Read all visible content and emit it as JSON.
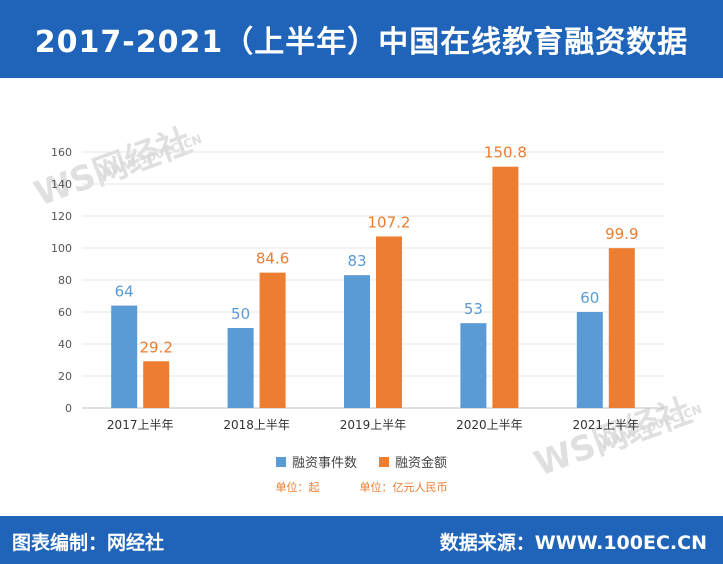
{
  "title": "2017-2021（上半年）中国在线教育融资数据",
  "footer": {
    "left": "图表编制：网经社",
    "right": "数据来源：WWW.100EC.CN"
  },
  "watermark": {
    "mark": "WS网经社",
    "sub": "WWW.100EC.CN"
  },
  "chart_data": {
    "type": "bar",
    "categories": [
      "2017上半年",
      "2018上半年",
      "2019上半年",
      "2020上半年",
      "2021上半年"
    ],
    "series": [
      {
        "name": "融资事件数",
        "values": [
          64,
          50,
          83,
          53,
          60
        ],
        "labels": [
          "64",
          "50",
          "83",
          "53",
          "60"
        ],
        "color": "#5b9bd5"
      },
      {
        "name": "融资金额",
        "values": [
          29.2,
          84.6,
          107.2,
          150.8,
          99.9
        ],
        "labels": [
          "29.2",
          "84.6",
          "107.2",
          "150.8",
          "99.9"
        ],
        "color": "#ed7d31"
      }
    ],
    "ylim": [
      0,
      160
    ],
    "yticks": [
      "0",
      "20",
      "40",
      "60",
      "80",
      "100",
      "120",
      "140",
      "160"
    ],
    "grid": true,
    "legend_position": "bottom",
    "units": {
      "events": "单位：起",
      "amount": "单位：亿元人民币"
    }
  }
}
